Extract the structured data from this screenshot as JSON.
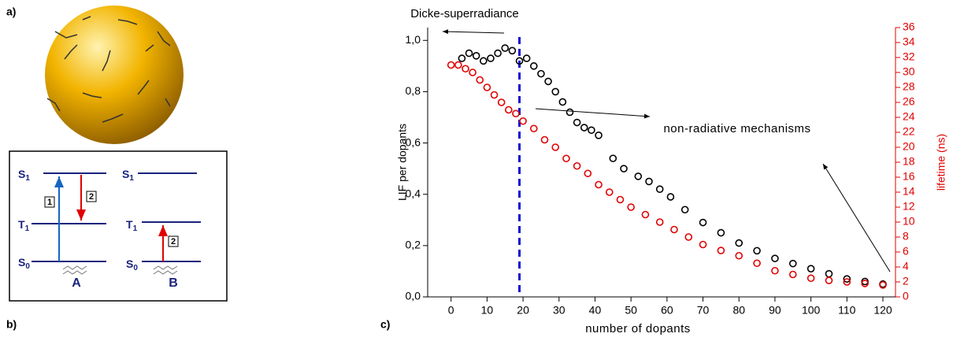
{
  "panels": {
    "a": "a)",
    "b": "b)",
    "c": "c)"
  },
  "diagram": {
    "A": {
      "S1": {
        "letter": "S",
        "sub": "1"
      },
      "T1": {
        "letter": "T",
        "sub": "1"
      },
      "S0": {
        "letter": "S",
        "sub": "0"
      },
      "step1": "1",
      "step2": "2",
      "name": "A"
    },
    "B": {
      "S1": {
        "letter": "S",
        "sub": "1"
      },
      "T1": {
        "letter": "T",
        "sub": "1"
      },
      "S0": {
        "letter": "S",
        "sub": "0"
      },
      "step2": "2",
      "name": "B"
    }
  },
  "chart_data": {
    "type": "scatter",
    "title": "Dicke-superradiance",
    "annotation": "non-radiative mechanisms",
    "x_label": "number of dopants",
    "y_label": "LIF per dopants",
    "y2_label": "lifetime (ns)",
    "xlim": [
      -6.5,
      123.5
    ],
    "xticks": [
      0,
      10,
      20,
      30,
      40,
      50,
      60,
      70,
      80,
      90,
      100,
      110,
      120
    ],
    "ylim": [
      0,
      1.05
    ],
    "yticks": [
      {
        "value": 0,
        "label": "0,0"
      },
      {
        "value": 0.2,
        "label": "0,2"
      },
      {
        "value": 0.4,
        "label": "0,4"
      },
      {
        "value": 0.6,
        "label": "0,6"
      },
      {
        "value": 0.8,
        "label": "0,8"
      },
      {
        "value": 1.0,
        "label": "1,0"
      }
    ],
    "y2lim": [
      0,
      36
    ],
    "y2ticks": [
      0,
      2,
      4,
      6,
      8,
      10,
      12,
      14,
      16,
      18,
      20,
      22,
      24,
      26,
      28,
      30,
      32,
      34,
      36
    ],
    "y2color": "#e00000",
    "vline": {
      "value": 19,
      "color": "#1010d0"
    },
    "series": [
      {
        "color": "#000000",
        "x": [
          3,
          5,
          7,
          9,
          11,
          13,
          15,
          17,
          19,
          21,
          23,
          25,
          27,
          29,
          31,
          33,
          35,
          37,
          39,
          41,
          45,
          48,
          52,
          55,
          58,
          61,
          65,
          70,
          75,
          80,
          85,
          90,
          95,
          100,
          105,
          110,
          115,
          120
        ],
        "values": [
          0.93,
          0.95,
          0.94,
          0.92,
          0.93,
          0.95,
          0.97,
          0.96,
          0.92,
          0.93,
          0.9,
          0.87,
          0.84,
          0.8,
          0.76,
          0.72,
          0.68,
          0.66,
          0.65,
          0.63,
          0.54,
          0.5,
          0.47,
          0.45,
          0.42,
          0.39,
          0.34,
          0.29,
          0.25,
          0.21,
          0.18,
          0.15,
          0.13,
          0.11,
          0.09,
          0.07,
          0.06,
          0.05
        ]
      },
      {
        "color": "#e00000",
        "axis": "y2",
        "x": [
          0,
          2,
          4,
          6,
          8,
          10,
          12,
          14,
          16,
          18,
          20,
          23,
          26,
          29,
          32,
          35,
          38,
          41,
          44,
          47,
          50,
          54,
          58,
          62,
          66,
          70,
          75,
          80,
          85,
          90,
          95,
          100,
          105,
          110,
          115,
          120
        ],
        "values": [
          31,
          31,
          30.5,
          30,
          29,
          28,
          27,
          26,
          25,
          24.5,
          23.5,
          22.5,
          21,
          20,
          18.5,
          17.5,
          16.5,
          15,
          14,
          13,
          12,
          11,
          10,
          9,
          8,
          7,
          6.2,
          5.5,
          4.5,
          3.5,
          3,
          2.5,
          2.2,
          2,
          1.8,
          1.6
        ]
      }
    ]
  }
}
